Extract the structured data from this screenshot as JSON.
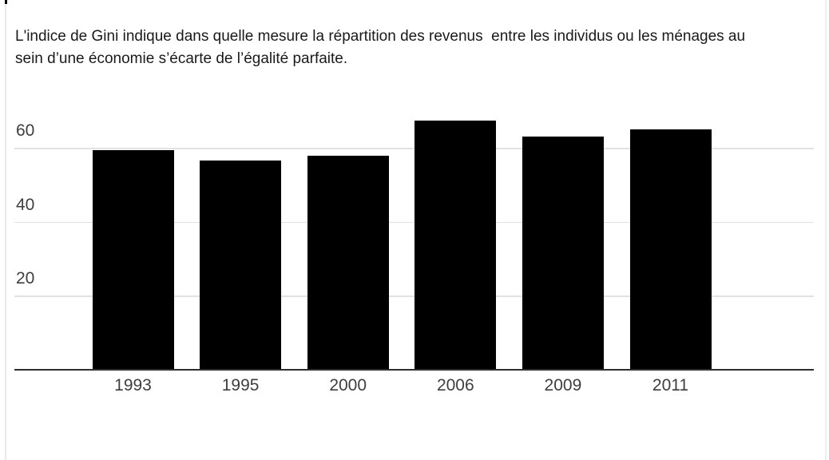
{
  "page": {
    "background": "#ffffff"
  },
  "intro": {
    "text": "L'indice de Gini indique dans quelle mesure la répartition des revenus  entre les individus ou les ménages au sein d’une économie s’écarte de l’égalité parfaite.",
    "lines": [
      "L'indice de Gini indique dans quelle mesure la répartition des revenus  entre les individus ou les ménages au",
      "sein d’une économie s’écarte de l’égalité parfaite."
    ]
  },
  "chart_data": {
    "type": "bar",
    "categories": [
      "1993",
      "1995",
      "2000",
      "2006",
      "2009",
      "2011"
    ],
    "values": [
      59.3,
      56.6,
      57.8,
      67.4,
      63.1,
      65.0
    ],
    "title": "",
    "xlabel": "",
    "ylabel": "",
    "yticks": [
      20,
      40,
      60
    ],
    "ytick_labels": [
      "20",
      "40",
      "60"
    ],
    "ylim": [
      0,
      70
    ],
    "grid": true,
    "legend": false,
    "colors": {
      "bar": "#000000",
      "gridline": "#e2e2e2",
      "axis_line": "#2e2e2e",
      "tick_text": "#3e3e42",
      "title_text": "#1a1a1a",
      "edge_line": "#eaeaea",
      "edge_top_mark": "#000000",
      "background": "#ffffff"
    }
  }
}
